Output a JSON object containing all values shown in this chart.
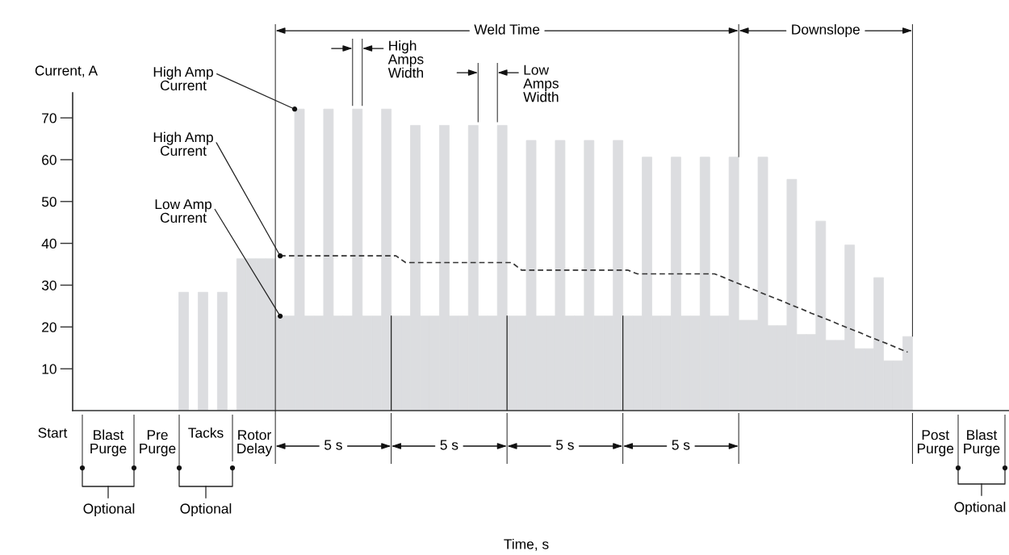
{
  "chart_data": {
    "type": "bar",
    "ylabel": "Current, A",
    "ylim": [
      0,
      76
    ],
    "yticks": [
      10,
      20,
      30,
      40,
      50,
      60,
      70
    ],
    "tick_labels": "y",
    "categories": [
      null,
      null,
      null,
      null,
      null,
      null,
      null,
      null,
      null,
      null,
      null,
      null,
      null,
      null,
      null,
      null,
      null,
      null,
      null,
      null,
      null,
      null,
      null,
      null,
      null,
      null,
      null,
      null,
      null,
      null,
      null,
      null,
      null,
      null,
      null,
      null,
      null,
      null,
      null,
      null,
      null,
      null,
      null,
      null,
      null,
      null,
      null,
      null,
      null,
      null,
      null,
      null,
      null,
      null,
      null,
      null,
      null,
      null,
      null,
      null,
      null,
      null,
      null,
      null,
      null,
      null,
      null,
      null,
      null,
      null,
      null,
      null,
      null,
      null,
      null,
      null,
      null,
      null,
      null,
      null,
      null,
      null,
      null,
      null,
      null,
      null,
      null,
      null,
      null,
      null,
      null,
      null,
      null,
      null,
      null,
      null,
      null
    ],
    "series": [
      {
        "color": "#dcdde0",
        "values": [
          0,
          0,
          0,
          0,
          0,
          0,
          0,
          0,
          0,
          0,
          0,
          28.3,
          0,
          28.3,
          0,
          28.3,
          0,
          36.3,
          36.3,
          36.3,
          36.3,
          22.6,
          22.6,
          72.1,
          22.6,
          22.6,
          72.1,
          22.6,
          22.6,
          72.1,
          22.6,
          22.6,
          72.1,
          22.6,
          22.6,
          68.2,
          22.6,
          22.6,
          68.2,
          22.6,
          22.6,
          68.2,
          22.6,
          22.6,
          68.2,
          22.6,
          22.6,
          64.6,
          22.6,
          22.6,
          64.6,
          22.6,
          22.6,
          64.6,
          22.6,
          22.6,
          64.6,
          22.6,
          22.6,
          60.6,
          22.6,
          22.6,
          60.6,
          22.6,
          22.6,
          60.6,
          22.6,
          22.6,
          60.6,
          21.6,
          21.6,
          60.6,
          20.3,
          20.3,
          55.3,
          18.2,
          18.2,
          45.3,
          16.8,
          16.8,
          39.6,
          14.8,
          14.8,
          31.8,
          11.9,
          11.9,
          17.7,
          0,
          0,
          0,
          0,
          0,
          0,
          0,
          0,
          0,
          0
        ]
      },
      {
        "type": "line",
        "color": "#333333",
        "line_style": "dashed",
        "values": [
          null,
          null,
          null,
          null,
          null,
          null,
          null,
          null,
          null,
          null,
          null,
          null,
          null,
          null,
          null,
          null,
          null,
          null,
          null,
          null,
          null,
          37.0,
          37.0,
          37.0,
          37.0,
          37.0,
          37.0,
          37.0,
          37.0,
          37.0,
          37.0,
          37.0,
          37.0,
          37.0,
          35.4,
          35.4,
          35.4,
          35.4,
          35.4,
          35.4,
          35.4,
          35.4,
          35.4,
          35.4,
          35.4,
          35.4,
          33.6,
          33.6,
          33.6,
          33.6,
          33.6,
          33.6,
          33.6,
          33.6,
          33.6,
          33.6,
          33.6,
          33.6,
          32.7,
          32.7,
          32.7,
          32.7,
          32.7,
          32.7,
          32.7,
          32.7,
          32.7,
          31.8,
          30.8,
          29.9,
          29.0,
          28.0,
          27.1,
          26.2,
          25.2,
          24.3,
          23.3,
          22.4,
          21.5,
          20.5,
          19.6,
          18.7,
          17.7,
          16.8,
          15.9,
          14.9,
          14.0,
          null,
          null,
          null,
          null,
          null,
          null,
          null,
          null,
          null,
          null
        ]
      }
    ],
    "annotations": [
      "High Amp\nCurrent",
      "High Amp\nCurrent",
      "Low Amp\nCurrent",
      "Weld Time",
      "Downslope",
      "High\nAmps\nWidth",
      "Low\nAmps\nWidth",
      "Start",
      "Blast\nPurge",
      "Pre\nPurge",
      "Tacks",
      "Rotor\nDelay",
      "5 s",
      "5 s",
      "5 s",
      "5 s",
      "Post\nPurge",
      "Blast\nPurge",
      "Optional",
      "Optional",
      "Optional",
      "Time, s"
    ]
  }
}
